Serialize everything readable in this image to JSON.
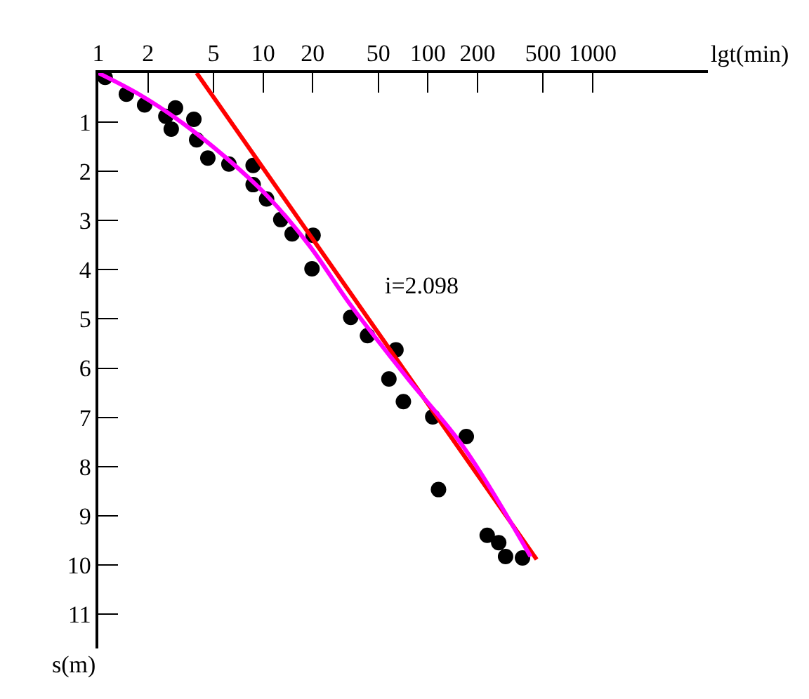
{
  "chart_data": {
    "type": "scatter",
    "xlabel": "lgt(min)",
    "ylabel": "s(m)",
    "log": "x",
    "xlim": [
      1,
      5000
    ],
    "xticks": [
      1,
      2,
      5,
      10,
      20,
      50,
      100,
      200,
      500,
      1000
    ],
    "ylim": [
      11.7,
      0
    ],
    "yticks": [
      1,
      2,
      3,
      4,
      5,
      6,
      7,
      8,
      9,
      10,
      11
    ],
    "tick_labels": "xy",
    "annotations": [
      "i=2.098"
    ],
    "series": [
      {
        "color": "#000000",
        "marker": "circle",
        "x": [
          1.1,
          1.48,
          1.91,
          2.57,
          2.94,
          2.77,
          3.8,
          3.95,
          4.62,
          6.2,
          8.7,
          8.7,
          10.5,
          12.8,
          15,
          20.1,
          19.8,
          34,
          43,
          64,
          58,
          71,
          107,
          171,
          116,
          229,
          269,
          296,
          375
        ],
        "values": [
          0.09,
          0.43,
          0.65,
          0.88,
          0.71,
          1.14,
          0.94,
          1.36,
          1.73,
          1.85,
          1.88,
          2.27,
          2.56,
          2.98,
          3.27,
          3.3,
          3.98,
          4.97,
          5.34,
          5.63,
          6.22,
          6.68,
          6.99,
          7.39,
          8.47,
          9.4,
          9.55,
          9.83,
          9.86
        ]
      },
      {
        "type": "line",
        "color": "#ff0000",
        "marker": "none",
        "line_style": "solid",
        "x": [
          3.95,
          457
        ],
        "values": [
          0,
          9.89
        ]
      },
      {
        "type": "line",
        "color": "#ff00ff",
        "marker": "none",
        "line_style": "solid",
        "x": [
          1,
          1.8,
          3.25,
          5.85,
          10.6,
          19,
          34,
          75,
          165,
          420
        ],
        "values": [
          0,
          0.45,
          1.02,
          1.7,
          2.5,
          3.5,
          4.72,
          6.2,
          7.61,
          9.83
        ]
      }
    ]
  }
}
